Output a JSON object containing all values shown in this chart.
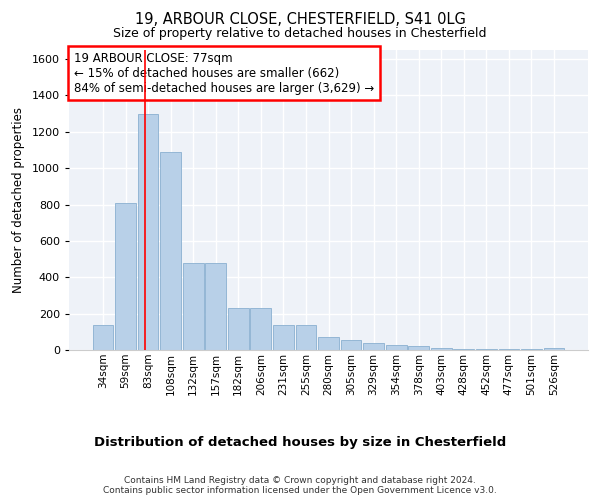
{
  "title1": "19, ARBOUR CLOSE, CHESTERFIELD, S41 0LG",
  "title2": "Size of property relative to detached houses in Chesterfield",
  "xlabel": "Distribution of detached houses by size in Chesterfield",
  "ylabel": "Number of detached properties",
  "categories": [
    "34sqm",
    "59sqm",
    "83sqm",
    "108sqm",
    "132sqm",
    "157sqm",
    "182sqm",
    "206sqm",
    "231sqm",
    "255sqm",
    "280sqm",
    "305sqm",
    "329sqm",
    "354sqm",
    "378sqm",
    "403sqm",
    "428sqm",
    "452sqm",
    "477sqm",
    "501sqm",
    "526sqm"
  ],
  "values": [
    140,
    810,
    1300,
    1090,
    480,
    480,
    230,
    230,
    140,
    140,
    70,
    55,
    40,
    25,
    20,
    10,
    5,
    5,
    5,
    5,
    10
  ],
  "bar_color": "#b8d0e8",
  "bar_edge_color": "#8ab0d0",
  "annotation_text": "19 ARBOUR CLOSE: 77sqm\n← 15% of detached houses are smaller (662)\n84% of semi-detached houses are larger (3,629) →",
  "ylim": [
    0,
    1650
  ],
  "yticks": [
    0,
    200,
    400,
    600,
    800,
    1000,
    1200,
    1400,
    1600
  ],
  "vline_pos": 1.85,
  "footer1": "Contains HM Land Registry data © Crown copyright and database right 2024.",
  "footer2": "Contains public sector information licensed under the Open Government Licence v3.0.",
  "bg_color": "#eef2f8"
}
